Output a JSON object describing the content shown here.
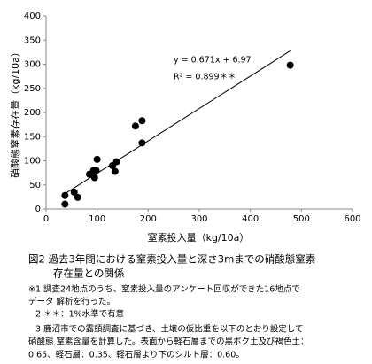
{
  "chart_data": {
    "type": "scatter",
    "y_label": "硝酸態窒素存在量（kg/10a）",
    "x_label": "窒素投入量（kg/10a）",
    "equation": "y = 0.671x + 6.97",
    "r_squared": "R² = 0.899＊＊",
    "color": "#000000",
    "x": [
      37,
      37,
      55,
      62,
      85,
      93,
      95,
      100,
      98,
      130,
      135,
      138,
      175,
      188,
      188,
      478
    ],
    "values": [
      28,
      10,
      35,
      24,
      72,
      80,
      65,
      103,
      80,
      90,
      78,
      98,
      172,
      183,
      137,
      298
    ],
    "trendline": {
      "slope": 0.671,
      "intercept": 6.97,
      "xrange": [
        37,
        478
      ]
    },
    "xlim": [
      0,
      600
    ],
    "xticks": [
      0,
      100,
      200,
      300,
      400,
      500,
      600
    ],
    "ylim": [
      0,
      400
    ],
    "yticks": [
      0,
      50,
      100,
      150,
      200,
      250,
      300,
      350,
      400
    ],
    "grid": false
  },
  "caption": {
    "title": "図2 過去3年間における窒素投入量と深さ3mまでの硝酸態窒素",
    "title_cont": "存在量との関係",
    "notes": [
      "※1 調査24地点のうち、窒素投入量のアンケート回収ができた16地点で",
      "データ 解析を行った。",
      "2 ＊＊：1%水準で有意",
      "3 鹿沼市での露頭調査に基づき、土壌の仮比重を以下のとおり設定して",
      "硝酸態 窒素含量を計算した。表面から軽石層までの黒ボク土及び褐色土：",
      "0.65、軽石層：0.35、軽石層より下のシルト層：0.60。"
    ]
  }
}
